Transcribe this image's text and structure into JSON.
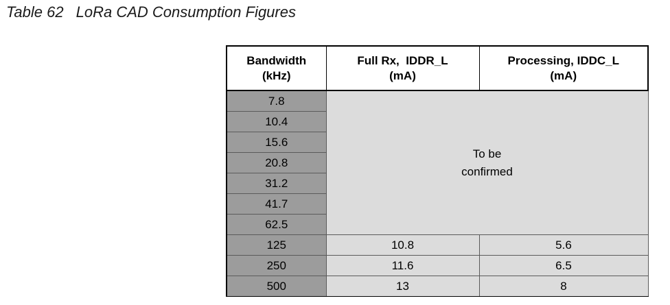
{
  "caption": {
    "number": "Table 62",
    "title": "LoRa CAD Consumption Figures"
  },
  "table": {
    "headers": [
      [
        "Bandwidth",
        "(kHz)"
      ],
      [
        "Full Rx,  IDDR_L",
        "(mA)"
      ],
      [
        "Processing, IDDC_L",
        "(mA)"
      ]
    ],
    "merged_note": [
      "To be",
      "confirmed"
    ],
    "merged_bandwidths": [
      "7.8",
      "10.4",
      "15.6",
      "20.8",
      "31.2",
      "41.7",
      "62.5"
    ],
    "rows": [
      {
        "bandwidth": "125",
        "full_rx": "10.8",
        "processing": "5.6"
      },
      {
        "bandwidth": "250",
        "full_rx": "11.6",
        "processing": "6.5"
      },
      {
        "bandwidth": "500",
        "full_rx": "13",
        "processing": "8"
      }
    ]
  }
}
